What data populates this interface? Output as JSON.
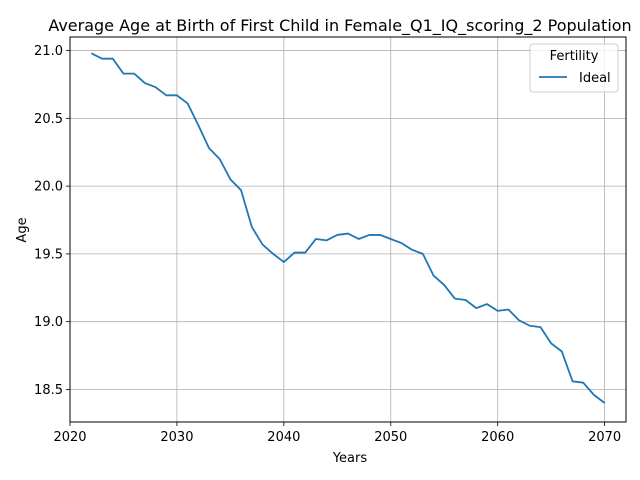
{
  "chart_data": {
    "type": "line",
    "title": "Average Age at Birth of First Child in Female_Q1_IQ_scoring_2 Population",
    "xlabel": "Years",
    "ylabel": "Age",
    "xlim": [
      2020,
      2072
    ],
    "ylim": [
      18.26,
      21.1
    ],
    "xticks": [
      2020,
      2030,
      2040,
      2050,
      2060,
      2070
    ],
    "yticks": [
      18.5,
      19.0,
      19.5,
      20.0,
      20.5,
      21.0
    ],
    "xtick_labels": [
      "2020",
      "2030",
      "2040",
      "2050",
      "2060",
      "2070"
    ],
    "ytick_labels": [
      "18.5",
      "19.0",
      "19.5",
      "20.0",
      "20.5",
      "21.0"
    ],
    "grid": true,
    "legend": {
      "title": "Fertility",
      "placement": "top-right"
    },
    "x": [
      2022,
      2023,
      2024,
      2025,
      2026,
      2027,
      2028,
      2029,
      2030,
      2031,
      2032,
      2033,
      2034,
      2035,
      2036,
      2037,
      2038,
      2039,
      2040,
      2041,
      2042,
      2043,
      2044,
      2045,
      2046,
      2047,
      2048,
      2049,
      2050,
      2051,
      2052,
      2053,
      2054,
      2055,
      2056,
      2057,
      2058,
      2059,
      2060,
      2061,
      2062,
      2063,
      2064,
      2065,
      2066,
      2067,
      2068,
      2069,
      2070
    ],
    "series": [
      {
        "name": "Ideal",
        "color": "#1f77b4",
        "values": [
          20.98,
          20.94,
          20.94,
          20.83,
          20.83,
          20.76,
          20.73,
          20.67,
          20.67,
          20.61,
          20.45,
          20.28,
          20.2,
          20.05,
          19.97,
          19.7,
          19.57,
          19.5,
          19.44,
          19.51,
          19.51,
          19.61,
          19.6,
          19.64,
          19.65,
          19.61,
          19.64,
          19.64,
          19.61,
          19.58,
          19.53,
          19.5,
          19.34,
          19.27,
          19.17,
          19.16,
          19.1,
          19.13,
          19.08,
          19.09,
          19.01,
          18.97,
          18.96,
          18.84,
          18.78,
          18.56,
          18.55,
          18.46,
          18.4
        ]
      }
    ]
  }
}
